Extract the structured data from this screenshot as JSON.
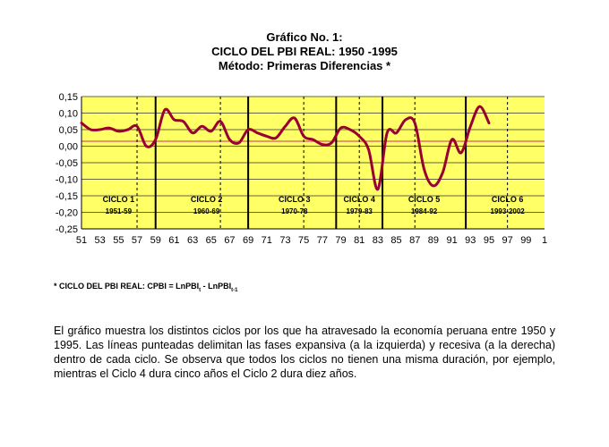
{
  "titles": {
    "line1": "Gráfico No. 1:",
    "line2": "CICLO DEL PBI REAL: 1950 -1995",
    "line3": "Método: Primeras Diferencias *"
  },
  "chart_data": {
    "type": "line",
    "series": [
      {
        "x": [
          1951,
          1952,
          1953,
          1954,
          1955,
          1956,
          1957,
          1958,
          1959,
          1960,
          1961,
          1962,
          1963,
          1964,
          1965,
          1966,
          1967,
          1968,
          1969,
          1970,
          1971,
          1972,
          1973,
          1974,
          1975,
          1976,
          1977,
          1978,
          1979,
          1980,
          1981,
          1982,
          1983,
          1984,
          1985,
          1986,
          1987,
          1988,
          1989,
          1990,
          1991,
          1992,
          1993,
          1994,
          1995
        ],
        "values": [
          0.07,
          0.05,
          0.05,
          0.055,
          0.045,
          0.05,
          0.06,
          0.0,
          0.02,
          0.11,
          0.08,
          0.075,
          0.04,
          0.06,
          0.045,
          0.075,
          0.02,
          0.01,
          0.05,
          0.04,
          0.03,
          0.025,
          0.06,
          0.085,
          0.03,
          0.02,
          0.005,
          0.01,
          0.055,
          0.05,
          0.03,
          -0.01,
          -0.13,
          0.04,
          0.04,
          0.08,
          0.07,
          -0.07,
          -0.12,
          -0.08,
          0.02,
          -0.02,
          0.06,
          0.12,
          0.07
        ]
      }
    ],
    "xlim": [
      1951,
      2001
    ],
    "ylim": [
      -0.25,
      0.15
    ],
    "y_ticks": [
      0.15,
      0.1,
      0.05,
      0.0,
      -0.05,
      -0.1,
      -0.15,
      -0.2,
      -0.25
    ],
    "y_tick_labels": [
      "0,15",
      "0,10",
      "0,05",
      "0,00",
      "-0,05",
      "-0,10",
      "-0,15",
      "-0,20",
      "-0,25"
    ],
    "x_ticks": [
      1951,
      1953,
      1955,
      1957,
      1959,
      1961,
      1963,
      1965,
      1967,
      1969,
      1971,
      1973,
      1975,
      1977,
      1979,
      1981,
      1983,
      1985,
      1987,
      1989,
      1991,
      1993,
      1995,
      1997,
      1999,
      2001
    ],
    "x_tick_labels": [
      "51",
      "53",
      "55",
      "57",
      "59",
      "61",
      "63",
      "65",
      "67",
      "69",
      "71",
      "73",
      "75",
      "77",
      "79",
      "81",
      "83",
      "85",
      "87",
      "89",
      "91",
      "93",
      "95",
      "97",
      "99",
      "1"
    ],
    "reference_line_y": 0.015,
    "cycle_boundaries": [
      1959,
      1969,
      1978.5,
      1983.5,
      1992.5
    ],
    "peak_lines": [
      1957,
      1966,
      1975,
      1981,
      1987,
      1997
    ],
    "cycles": [
      {
        "name": "CICLO 1",
        "years": "1951-59",
        "center": 1955
      },
      {
        "name": "CICLO 2",
        "years": "1960-69",
        "center": 1964.5
      },
      {
        "name": "CICLO 3",
        "years": "1970-78",
        "center": 1974
      },
      {
        "name": "CICLO 4",
        "years": "1979-83",
        "center": 1981
      },
      {
        "name": "CICLO 5",
        "years": "1984-92",
        "center": 1988
      },
      {
        "name": "CICLO 6",
        "years": "1993-2002",
        "center": 1997
      }
    ],
    "colors": {
      "plot_bg": "#ffff66",
      "line": "#990033",
      "reference": "#cc3366",
      "grid": "#333333"
    },
    "grid": true
  },
  "footnote": {
    "prefix": "* CICLO DEL PBI REAL: CPBI = LnPBI",
    "sub1": "t",
    "middle": " - LnPBI",
    "sub2": "t-1"
  },
  "paragraph": "El gráfico muestra los distintos ciclos por los que ha atravesado la economía peruana entre 1950 y 1995. Las líneas punteadas delimitan las fases expansiva (a la izquierda) y recesiva (a la derecha) dentro de cada ciclo. Se observa que todos los ciclos no tienen una misma duración, por ejemplo, mientras el Ciclo 4 dura cinco años el Ciclo 2 dura diez años."
}
